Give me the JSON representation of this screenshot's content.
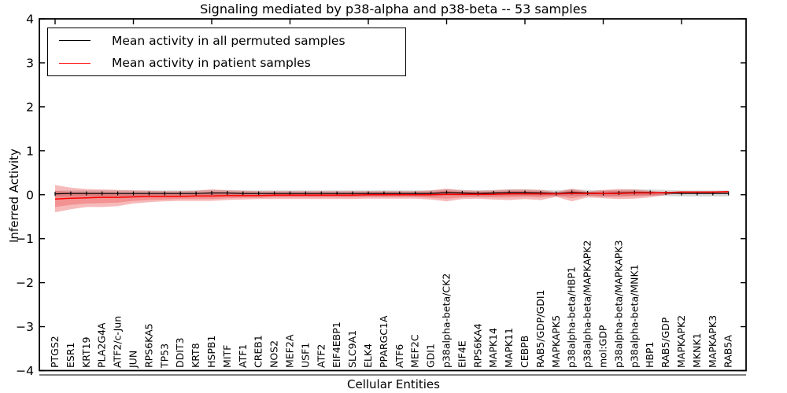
{
  "figure": {
    "title": "Signaling mediated by p38-alpha and p38-beta -- 53 samples",
    "xlabel": "Cellular Entities",
    "ylabel": "Inferred Activity"
  },
  "legend": {
    "position": "upper left",
    "entries": [
      {
        "label": "Mean activity in all permuted samples",
        "color": "#000000"
      },
      {
        "label": "Mean activity in patient samples",
        "color": "#ff0000"
      }
    ]
  },
  "chart_data": {
    "type": "line",
    "title": "Signaling mediated by p38-alpha and p38-beta -- 53 samples",
    "xlabel": "Cellular Entities",
    "ylabel": "Inferred Activity",
    "ylim": [
      -4,
      4
    ],
    "yticks": [
      4,
      3,
      2,
      1,
      0,
      -1,
      -2,
      -3,
      -4
    ],
    "grid": false,
    "legend_position": "upper left",
    "categories": [
      "PTGS2",
      "ESR1",
      "KRT19",
      "PLA2G4A",
      "ATF2/c-Jun",
      "JUN",
      "RPS6KA5",
      "TP53",
      "DDIT3",
      "KRT8",
      "HSPB1",
      "MITF",
      "ATF1",
      "CREB1",
      "NOS2",
      "MEF2A",
      "USF1",
      "ATF2",
      "EIF4EBP1",
      "SLC9A1",
      "ELK4",
      "PPARGC1A",
      "ATF6",
      "MEF2C",
      "GDI1",
      "p38alpha-beta/CK2",
      "EIF4E",
      "RPS6KA4",
      "MAPK14",
      "MAPK11",
      "CEBPB",
      "RAB5/GDP/GDI1",
      "MAPKAPK5",
      "p38alpha-beta/HBP1",
      "p38alpha-beta/MAPKAPK2",
      "mol:GDP",
      "p38alpha-beta/MAPKAPK3",
      "p38alpha-beta/MNK1",
      "HBP1",
      "RAB5/GDP",
      "MAPKAPK2",
      "MKNK1",
      "MAPKAPK3",
      "RAB5A"
    ],
    "series": [
      {
        "name": "Mean activity in all permuted samples",
        "color": "#000000",
        "marker": "plus",
        "values": [
          0.02,
          0.03,
          0.03,
          0.03,
          0.03,
          0.03,
          0.03,
          0.03,
          0.03,
          0.03,
          0.04,
          0.04,
          0.03,
          0.03,
          0.03,
          0.03,
          0.03,
          0.03,
          0.03,
          0.03,
          0.03,
          0.03,
          0.03,
          0.03,
          0.03,
          0.05,
          0.04,
          0.03,
          0.04,
          0.05,
          0.05,
          0.04,
          0.03,
          0.05,
          0.04,
          0.03,
          0.04,
          0.05,
          0.05,
          0.04,
          0.03,
          0.03,
          0.03,
          0.03
        ]
      },
      {
        "name": "Mean activity in patient samples",
        "color": "#ff0000",
        "marker": "none",
        "values": [
          -0.1,
          -0.08,
          -0.07,
          -0.06,
          -0.06,
          -0.05,
          -0.04,
          -0.04,
          -0.04,
          -0.03,
          -0.03,
          -0.02,
          -0.02,
          -0.02,
          -0.01,
          -0.01,
          -0.01,
          -0.01,
          -0.01,
          -0.01,
          0.0,
          0.0,
          0.0,
          0.0,
          0.0,
          0.01,
          0.01,
          0.01,
          0.01,
          0.02,
          0.02,
          0.02,
          0.02,
          0.03,
          0.03,
          0.03,
          0.03,
          0.04,
          0.04,
          0.05,
          0.06,
          0.06,
          0.06,
          0.07
        ]
      }
    ],
    "bands": {
      "patient_outer": {
        "color": "rgba(228,26,28,0.30)",
        "upper": [
          0.22,
          0.16,
          0.13,
          0.12,
          0.11,
          0.1,
          0.09,
          0.08,
          0.08,
          0.09,
          0.12,
          0.1,
          0.09,
          0.08,
          0.08,
          0.08,
          0.08,
          0.08,
          0.08,
          0.08,
          0.08,
          0.08,
          0.08,
          0.08,
          0.1,
          0.14,
          0.1,
          0.09,
          0.1,
          0.12,
          0.12,
          0.11,
          0.06,
          0.14,
          0.07,
          0.11,
          0.13,
          0.12,
          0.09,
          0.06,
          0.08,
          0.08,
          0.08,
          0.08
        ],
        "lower": [
          -0.4,
          -0.33,
          -0.28,
          -0.28,
          -0.26,
          -0.2,
          -0.17,
          -0.15,
          -0.14,
          -0.14,
          -0.14,
          -0.12,
          -0.11,
          -0.1,
          -0.1,
          -0.1,
          -0.1,
          -0.1,
          -0.1,
          -0.1,
          -0.09,
          -0.09,
          -0.09,
          -0.09,
          -0.11,
          -0.15,
          -0.1,
          -0.09,
          -0.11,
          -0.12,
          -0.1,
          -0.12,
          -0.05,
          -0.15,
          -0.06,
          -0.08,
          -0.1,
          -0.09,
          -0.06,
          -0.01,
          0.04,
          0.04,
          0.04,
          0.04
        ]
      },
      "patient_inner": {
        "color": "rgba(228,26,28,0.25)",
        "upper": [
          0.09,
          0.06,
          0.05,
          0.05,
          0.04,
          0.04,
          0.04,
          0.03,
          0.03,
          0.04,
          0.06,
          0.05,
          0.05,
          0.04,
          0.04,
          0.04,
          0.04,
          0.04,
          0.04,
          0.04,
          0.05,
          0.05,
          0.05,
          0.05,
          0.06,
          0.09,
          0.06,
          0.06,
          0.06,
          0.08,
          0.08,
          0.07,
          0.04,
          0.1,
          0.05,
          0.08,
          0.09,
          0.09,
          0.07,
          0.06,
          0.07,
          0.07,
          0.07,
          0.07
        ],
        "lower": [
          -0.28,
          -0.23,
          -0.2,
          -0.19,
          -0.18,
          -0.14,
          -0.12,
          -0.11,
          -0.1,
          -0.1,
          -0.1,
          -0.08,
          -0.07,
          -0.07,
          -0.06,
          -0.06,
          -0.06,
          -0.06,
          -0.06,
          -0.06,
          -0.05,
          -0.05,
          -0.05,
          -0.05,
          -0.07,
          -0.09,
          -0.06,
          -0.05,
          -0.06,
          -0.06,
          -0.05,
          -0.06,
          -0.02,
          -0.08,
          -0.02,
          -0.04,
          -0.05,
          -0.04,
          -0.02,
          0.01,
          0.05,
          0.05,
          0.05,
          0.05
        ]
      },
      "permuted_gray": {
        "color": "rgba(100,100,100,0.25)",
        "half_width": 0.07
      }
    }
  }
}
